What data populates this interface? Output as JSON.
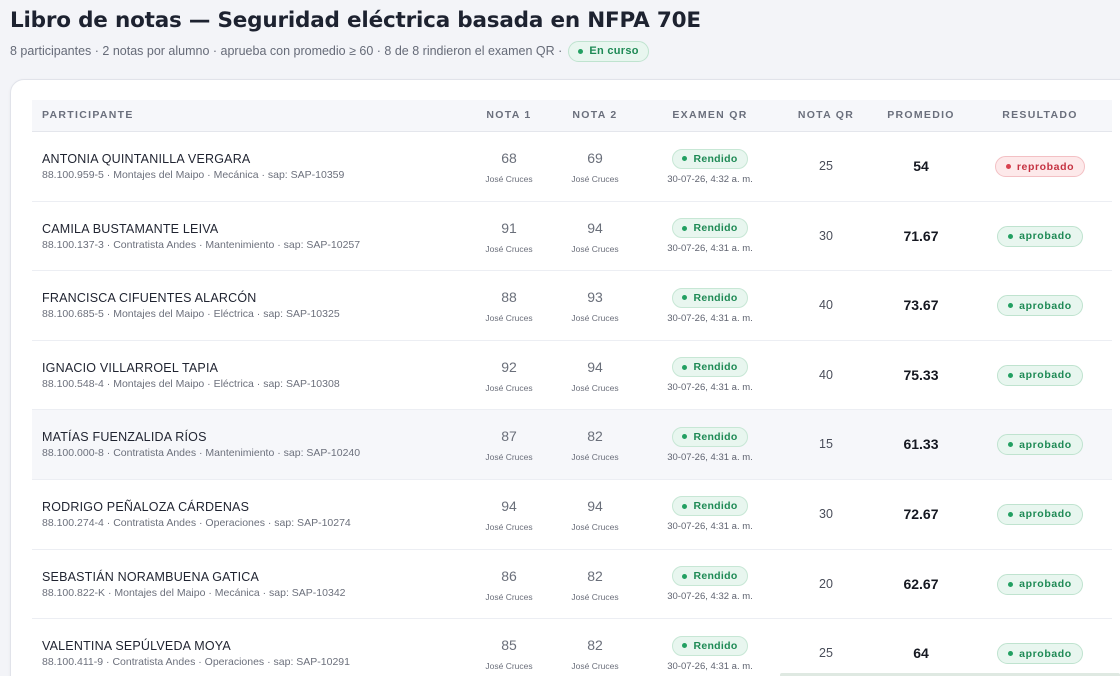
{
  "header": {
    "title": "Libro de notas — Seguridad eléctrica basada en NFPA 70E",
    "subtitle": "8 participantes · 2 notas por alumno · aprueba con promedio ≥ 60 · 8 de 8 rindieron el examen QR ·",
    "status_badge": "En curso"
  },
  "colors": {
    "accent_green": "#23a062",
    "fail_red": "#d9414f"
  },
  "table": {
    "columns": {
      "participante": "PARTICIPANTE",
      "nota1": "NOTA 1",
      "nota2": "NOTA 2",
      "examen_qr": "EXAMEN QR",
      "nota_qr": "NOTA QR",
      "promedio": "PROMEDIO",
      "resultado": "RESULTADO"
    },
    "rows": [
      {
        "name": "ANTONIA QUINTANILLA VERGARA",
        "meta": "88.100.959-5 · Montajes del Maipo · Mecánica · sap: SAP-10359",
        "nota1": "68",
        "nota1_by": "José Cruces",
        "nota2": "69",
        "nota2_by": "José Cruces",
        "exam_status": "Rendido",
        "exam_date": "30-07-26, 4:32 a. m.",
        "nota_qr": "25",
        "promedio": "54",
        "resultado": "reprobado"
      },
      {
        "name": "CAMILA BUSTAMANTE LEIVA",
        "meta": "88.100.137-3 · Contratista Andes · Mantenimiento · sap: SAP-10257",
        "nota1": "91",
        "nota1_by": "José Cruces",
        "nota2": "94",
        "nota2_by": "José Cruces",
        "exam_status": "Rendido",
        "exam_date": "30-07-26, 4:31 a. m.",
        "nota_qr": "30",
        "promedio": "71.67",
        "resultado": "aprobado"
      },
      {
        "name": "FRANCISCA CIFUENTES ALARCÓN",
        "meta": "88.100.685-5 · Montajes del Maipo · Eléctrica · sap: SAP-10325",
        "nota1": "88",
        "nota1_by": "José Cruces",
        "nota2": "93",
        "nota2_by": "José Cruces",
        "exam_status": "Rendido",
        "exam_date": "30-07-26, 4:31 a. m.",
        "nota_qr": "40",
        "promedio": "73.67",
        "resultado": "aprobado"
      },
      {
        "name": "IGNACIO VILLARROEL TAPIA",
        "meta": "88.100.548-4 · Montajes del Maipo · Eléctrica · sap: SAP-10308",
        "nota1": "92",
        "nota1_by": "José Cruces",
        "nota2": "94",
        "nota2_by": "José Cruces",
        "exam_status": "Rendido",
        "exam_date": "30-07-26, 4:31 a. m.",
        "nota_qr": "40",
        "promedio": "75.33",
        "resultado": "aprobado"
      },
      {
        "name": "MATÍAS FUENZALIDA RÍOS",
        "meta": "88.100.000-8 · Contratista Andes · Mantenimiento · sap: SAP-10240",
        "nota1": "87",
        "nota1_by": "José Cruces",
        "nota2": "82",
        "nota2_by": "José Cruces",
        "exam_status": "Rendido",
        "exam_date": "30-07-26, 4:31 a. m.",
        "nota_qr": "15",
        "promedio": "61.33",
        "resultado": "aprobado"
      },
      {
        "name": "RODRIGO PEÑALOZA CÁRDENAS",
        "meta": "88.100.274-4 · Contratista Andes · Operaciones · sap: SAP-10274",
        "nota1": "94",
        "nota1_by": "José Cruces",
        "nota2": "94",
        "nota2_by": "José Cruces",
        "exam_status": "Rendido",
        "exam_date": "30-07-26, 4:31 a. m.",
        "nota_qr": "30",
        "promedio": "72.67",
        "resultado": "aprobado"
      },
      {
        "name": "SEBASTIÁN NORAMBUENA GATICA",
        "meta": "88.100.822-K · Montajes del Maipo · Mecánica · sap: SAP-10342",
        "nota1": "86",
        "nota1_by": "José Cruces",
        "nota2": "82",
        "nota2_by": "José Cruces",
        "exam_status": "Rendido",
        "exam_date": "30-07-26, 4:32 a. m.",
        "nota_qr": "20",
        "promedio": "62.67",
        "resultado": "aprobado"
      },
      {
        "name": "VALENTINA SEPÚLVEDA MOYA",
        "meta": "88.100.411-9 · Contratista Andes · Operaciones · sap: SAP-10291",
        "nota1": "85",
        "nota1_by": "José Cruces",
        "nota2": "82",
        "nota2_by": "José Cruces",
        "exam_status": "Rendido",
        "exam_date": "30-07-26, 4:31 a. m.",
        "nota_qr": "25",
        "promedio": "64",
        "resultado": "aprobado"
      }
    ]
  }
}
